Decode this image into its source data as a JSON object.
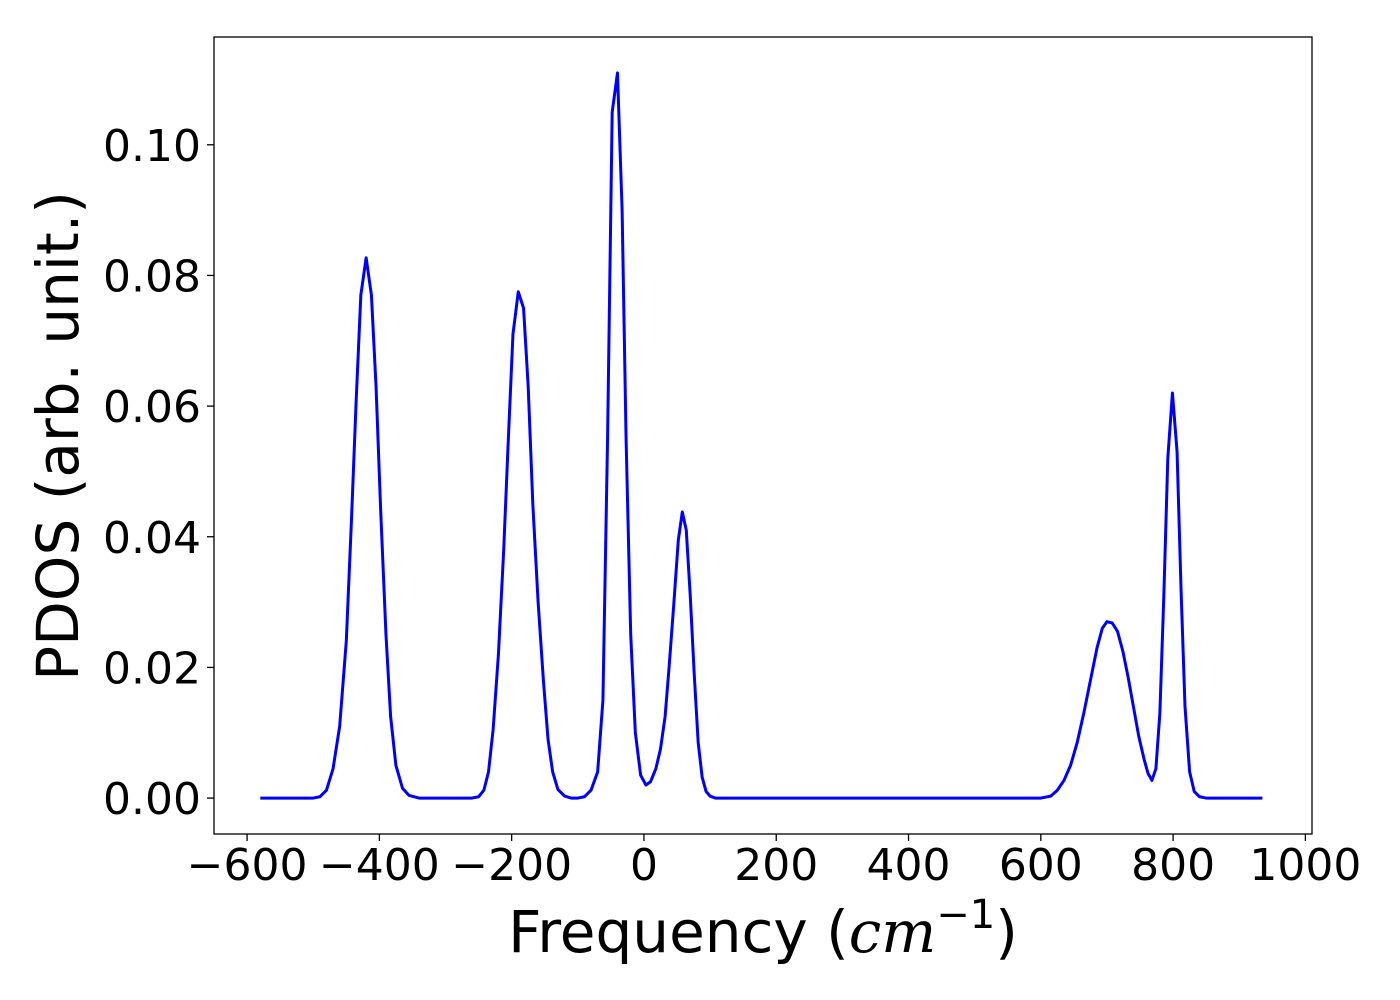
{
  "chart_data": {
    "type": "line",
    "title": "",
    "xlabel_text": "Frequency (",
    "xlabel_math": "cm",
    "xlabel_exp": "−1",
    "xlabel_close": ")",
    "ylabel": "PDOS (arb. unit.)",
    "xlim": [
      -650,
      1010
    ],
    "ylim": [
      -0.0055,
      0.1165
    ],
    "xticks": [
      -600,
      -400,
      -200,
      0,
      200,
      400,
      600,
      800,
      1000
    ],
    "xtick_labels": [
      "−600",
      "−400",
      "−200",
      "0",
      "200",
      "400",
      "600",
      "800",
      "1000"
    ],
    "yticks": [
      0.0,
      0.02,
      0.04,
      0.06,
      0.08,
      0.1
    ],
    "ytick_labels": [
      "0.00",
      "0.02",
      "0.04",
      "0.06",
      "0.08",
      "0.10"
    ],
    "grid": false,
    "line_color": "#0000ff",
    "series": [
      {
        "x": [
          -580,
          -500,
          -490,
          -480,
          -470,
          -460,
          -450,
          -442,
          -435,
          -428,
          -420,
          -412,
          -405,
          -398,
          -390,
          -383,
          -375,
          -365,
          -355,
          -340,
          -300,
          -260,
          -250,
          -242,
          -235,
          -228,
          -220,
          -212,
          -205,
          -198,
          -190,
          -182,
          -175,
          -168,
          -160,
          -152,
          -145,
          -138,
          -130,
          -120,
          -110,
          -100,
          -90,
          -80,
          -70,
          -62,
          -55,
          -48,
          -40,
          -33,
          -27,
          -20,
          -13,
          -5,
          3,
          10,
          18,
          25,
          32,
          38,
          45,
          52,
          58,
          64,
          70,
          76,
          82,
          88,
          94,
          100,
          108,
          115,
          125,
          140,
          200,
          400,
          600,
          615,
          625,
          635,
          645,
          655,
          665,
          675,
          685,
          693,
          700,
          708,
          716,
          724,
          732,
          740,
          748,
          756,
          762,
          768,
          774,
          780,
          786,
          792,
          799,
          806,
          812,
          818,
          825,
          832,
          840,
          850,
          870,
          900,
          935
        ],
        "y": [
          0.0,
          0.0,
          0.0002,
          0.0012,
          0.0045,
          0.011,
          0.024,
          0.043,
          0.061,
          0.077,
          0.0827,
          0.077,
          0.063,
          0.044,
          0.025,
          0.0125,
          0.005,
          0.0015,
          0.0004,
          0.0,
          0.0,
          0.0,
          0.0002,
          0.0012,
          0.004,
          0.0105,
          0.022,
          0.038,
          0.055,
          0.071,
          0.0775,
          0.075,
          0.063,
          0.045,
          0.03,
          0.018,
          0.009,
          0.004,
          0.0013,
          0.0003,
          0.0,
          0.0,
          0.0002,
          0.0012,
          0.004,
          0.015,
          0.055,
          0.105,
          0.111,
          0.09,
          0.055,
          0.025,
          0.01,
          0.0035,
          0.002,
          0.0025,
          0.0045,
          0.0075,
          0.0125,
          0.02,
          0.0295,
          0.0395,
          0.0438,
          0.041,
          0.031,
          0.019,
          0.0085,
          0.0032,
          0.001,
          0.0003,
          0.0,
          0.0,
          0.0,
          0.0,
          0.0,
          0.0,
          0.0,
          0.0003,
          0.0012,
          0.0027,
          0.005,
          0.0085,
          0.013,
          0.018,
          0.023,
          0.026,
          0.027,
          0.0268,
          0.0255,
          0.0225,
          0.0185,
          0.014,
          0.0095,
          0.006,
          0.0038,
          0.0027,
          0.0045,
          0.013,
          0.031,
          0.052,
          0.062,
          0.053,
          0.032,
          0.014,
          0.004,
          0.001,
          0.0002,
          0.0,
          0.0,
          0.0,
          0.0
        ]
      }
    ]
  }
}
